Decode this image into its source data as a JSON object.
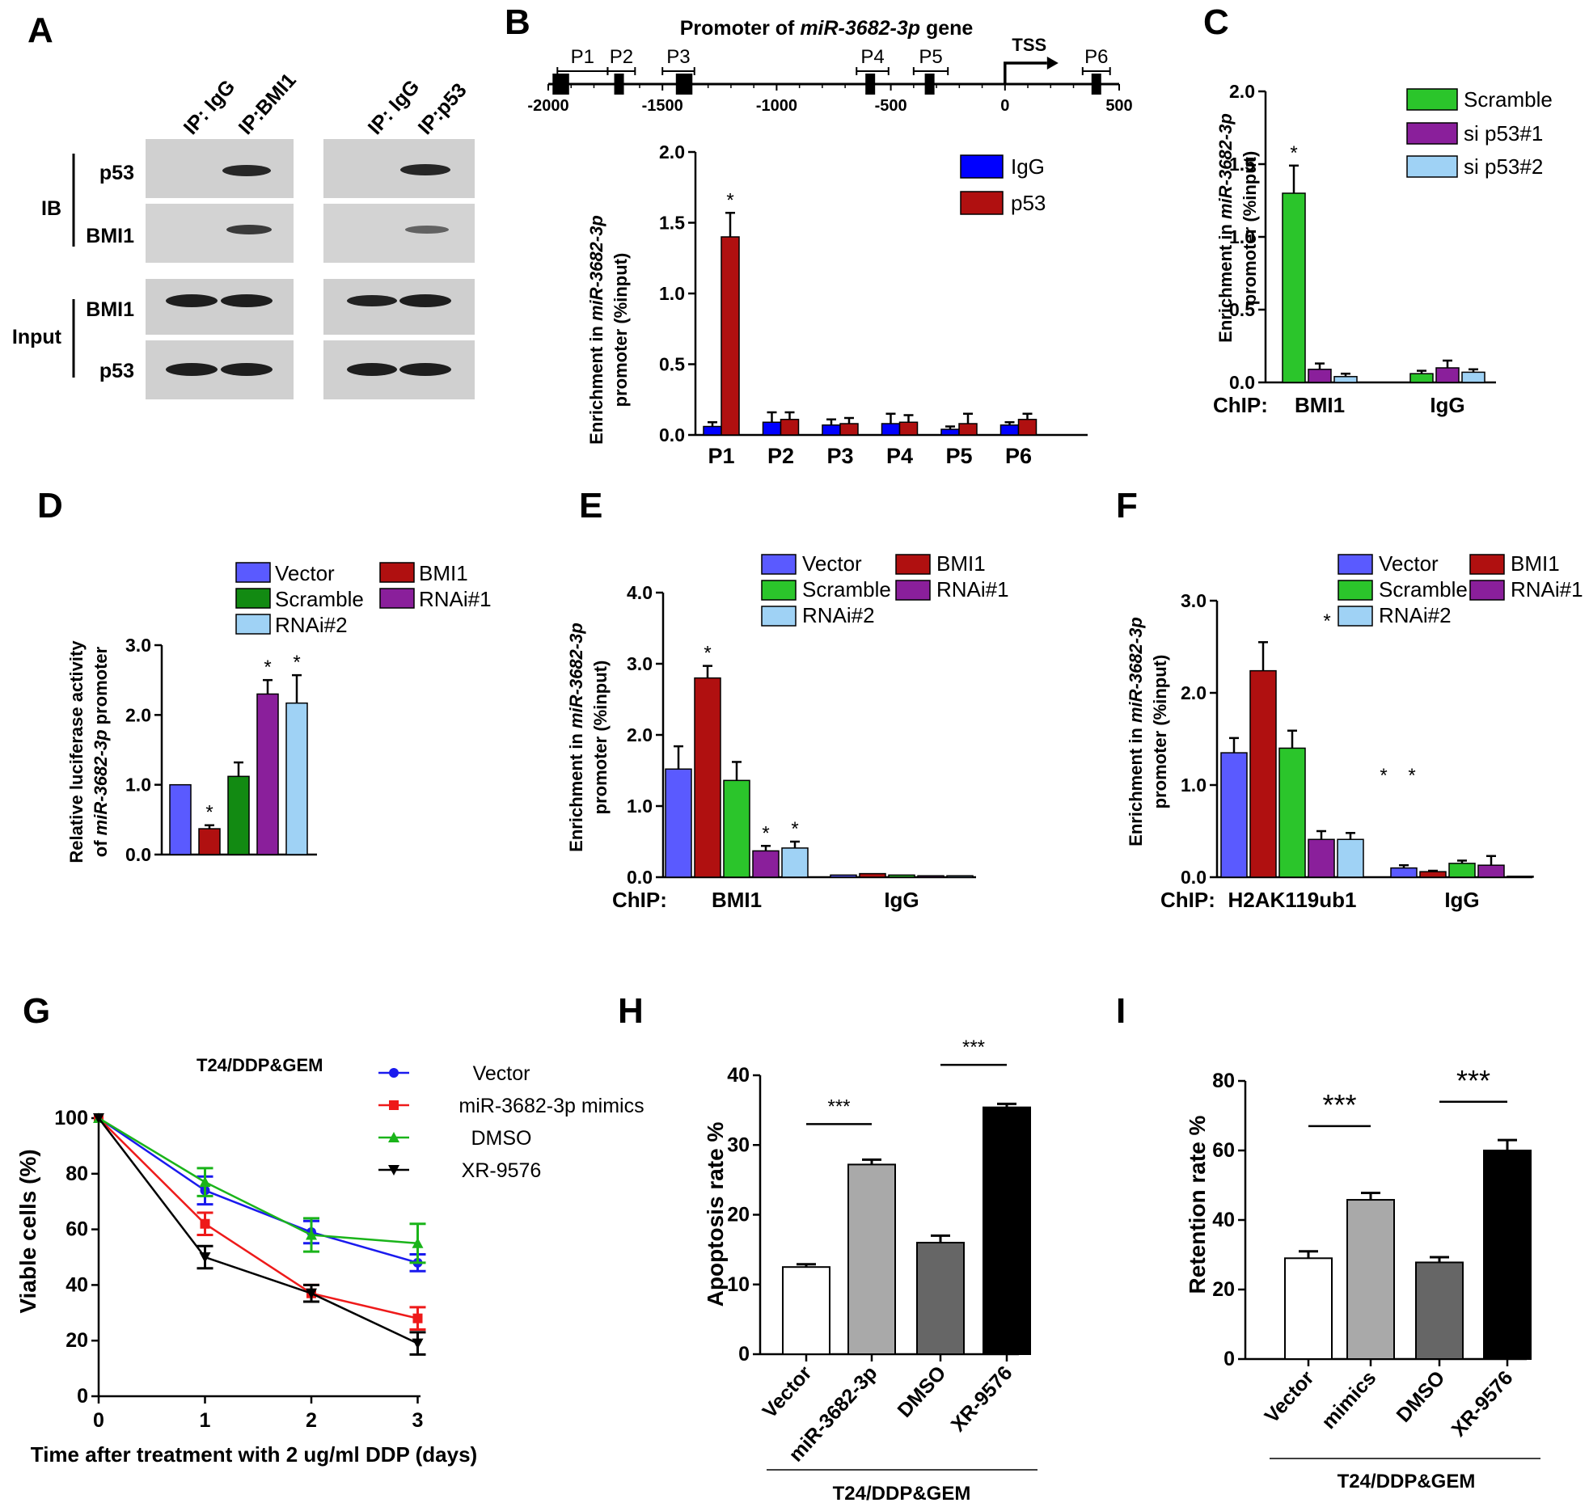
{
  "figure": {
    "panel_labels": [
      "A",
      "B",
      "C",
      "D",
      "E",
      "F",
      "G",
      "H",
      "I"
    ]
  },
  "blot": {
    "ip_labels": [
      "IP: IgG",
      "IP:BMI1",
      "IP: IgG",
      "IP:p53"
    ],
    "ib_label": "IB",
    "input_label": "Input",
    "row_labels": [
      "p53",
      "BMI1",
      "BMI1",
      "p53"
    ]
  },
  "chart_data": [
    {
      "panel": "B",
      "type": "bar",
      "title": "Promoter of miR-3682-3p gene",
      "title_plain": "Promoter of ",
      "title_italic": "miR-3682-3p",
      "title_tail": " gene",
      "map": {
        "axis_ticks": [
          "-2000",
          "-1500",
          "-1000",
          "-500",
          "0",
          "500"
        ],
        "axis_tick_values": [
          -2000,
          -1500,
          -1000,
          -500,
          0,
          500
        ],
        "regions": [
          {
            "label": "P1",
            "start": -1960,
            "end": -1740
          },
          {
            "label": "P2",
            "start": -1740,
            "end": -1620
          },
          {
            "label": "P3",
            "start": -1500,
            "end": -1360
          },
          {
            "label": "P4",
            "start": -650,
            "end": -510
          },
          {
            "label": "P5",
            "start": -400,
            "end": -250
          },
          {
            "label": "P6",
            "start": 340,
            "end": 460
          }
        ],
        "boxes": [
          -1960,
          -1930,
          -1690,
          -1420,
          -1390,
          -590,
          -330,
          400
        ],
        "tss_label": "TSS",
        "tss_pos": 0
      },
      "ylabel_line1_plain": "Enrichment in ",
      "ylabel_line1_italic": "miR-3682-3p",
      "ylabel_line2": "promoter (%input)",
      "ylim": [
        0,
        2.0
      ],
      "yticks": [
        "0.0",
        "0.5",
        "1.0",
        "1.5",
        "2.0"
      ],
      "ytick_values": [
        0,
        0.5,
        1.0,
        1.5,
        2.0
      ],
      "categories": [
        "P1",
        "P2",
        "P3",
        "P4",
        "P5",
        "P6"
      ],
      "series": [
        {
          "name": "IgG",
          "color": "#0000ff",
          "values": [
            0.06,
            0.09,
            0.07,
            0.08,
            0.04,
            0.07
          ],
          "errors": [
            0.03,
            0.07,
            0.04,
            0.07,
            0.02,
            0.02
          ]
        },
        {
          "name": "p53",
          "color": "#b01010",
          "values": [
            1.4,
            0.11,
            0.08,
            0.09,
            0.08,
            0.11
          ],
          "errors": [
            0.17,
            0.05,
            0.04,
            0.05,
            0.07,
            0.04
          ]
        }
      ],
      "significance": [
        {
          "category": "P1",
          "series": 1,
          "text": "*"
        }
      ]
    },
    {
      "panel": "C",
      "type": "bar",
      "ylabel_line1_plain": "Enrichment  in ",
      "ylabel_line1_italic": "miR-3682-3p",
      "ylabel_line2": "promoter (%input)",
      "ylim": [
        0,
        2.0
      ],
      "yticks": [
        "0.0",
        "0.5",
        "1.0",
        "1.5",
        "2.0"
      ],
      "ytick_values": [
        0,
        0.5,
        1.0,
        1.5,
        2.0
      ],
      "chip_label": "ChIP:",
      "categories": [
        "BMI1",
        "IgG"
      ],
      "series": [
        {
          "name": "Scramble",
          "color": "#2bc52b",
          "values": [
            1.3,
            0.06
          ],
          "errors": [
            0.19,
            0.02
          ]
        },
        {
          "name": "si p53#1",
          "color": "#8a1f9b",
          "values": [
            0.09,
            0.1
          ],
          "errors": [
            0.04,
            0.05
          ]
        },
        {
          "name": "si p53#2",
          "color": "#9fd2f5",
          "values": [
            0.04,
            0.07
          ],
          "errors": [
            0.02,
            0.02
          ]
        }
      ],
      "significance": [
        {
          "category": "BMI1",
          "series": 0,
          "text": "*"
        }
      ]
    },
    {
      "panel": "D",
      "type": "bar",
      "ylabel_line1": "Relative luciferase activity",
      "ylabel_line2_plain": "of ",
      "ylabel_line2_italic": "miR-3682-3p",
      "ylabel_line2_tail": " promoter",
      "ylim": [
        0,
        3.0
      ],
      "yticks": [
        "0.0",
        "1.0",
        "2.0",
        "3.0"
      ],
      "ytick_values": [
        0,
        1.0,
        2.0,
        3.0
      ],
      "categories": [
        "Vector",
        "BMI1",
        "Scramble",
        "RNAi#1",
        "RNAi#2"
      ],
      "values": [
        1.0,
        0.37,
        1.12,
        2.3,
        2.17
      ],
      "errors": [
        0.0,
        0.05,
        0.2,
        0.2,
        0.4
      ],
      "colors": [
        "#5a5aff",
        "#b01010",
        "#128a12",
        "#8a1f9b",
        "#9fd2f5"
      ],
      "significance": [
        "",
        "*",
        "",
        "*",
        "*"
      ],
      "legend_order": [
        "Vector",
        "BMI1",
        "Scramble",
        "RNAi#1",
        "RNAi#2"
      ]
    },
    {
      "panel": "E",
      "type": "bar",
      "ylabel_line1_plain": "Enrichment in ",
      "ylabel_line1_italic": "miR-3682-3p",
      "ylabel_line2": "promoter (%input)",
      "ylim": [
        0,
        4.0
      ],
      "yticks": [
        "0.0",
        "1.0",
        "2.0",
        "3.0",
        "4.0"
      ],
      "ytick_values": [
        0,
        1.0,
        2.0,
        3.0,
        4.0
      ],
      "chip_label": "ChIP:",
      "categories": [
        "BMI1",
        "IgG"
      ],
      "series": [
        {
          "name": "Vector",
          "color": "#5a5aff",
          "values": [
            1.52,
            0.03
          ],
          "errors": [
            0.32,
            0.0
          ]
        },
        {
          "name": "BMI1",
          "color": "#b01010",
          "values": [
            2.8,
            0.05
          ],
          "errors": [
            0.17,
            0.0
          ]
        },
        {
          "name": "Scramble",
          "color": "#2bc52b",
          "values": [
            1.36,
            0.03
          ],
          "errors": [
            0.26,
            0.0
          ]
        },
        {
          "name": "RNAi#1",
          "color": "#8a1f9b",
          "values": [
            0.37,
            0.02
          ],
          "errors": [
            0.07,
            0.0
          ]
        },
        {
          "name": "RNAi#2",
          "color": "#9fd2f5",
          "values": [
            0.41,
            0.02
          ],
          "errors": [
            0.09,
            0.0
          ]
        }
      ],
      "significance": [
        {
          "category": "BMI1",
          "series": 1,
          "text": "*"
        },
        {
          "category": "BMI1",
          "series": 3,
          "text": "*"
        },
        {
          "category": "BMI1",
          "series": 4,
          "text": "*"
        }
      ]
    },
    {
      "panel": "F",
      "type": "bar",
      "ylabel_line1_plain": "Enrichment in ",
      "ylabel_line1_italic": "miR-3682-3p",
      "ylabel_line2": "promoter (%input)",
      "ylim": [
        0,
        3.0
      ],
      "yticks": [
        "0.0",
        "1.0",
        "2.0",
        "3.0"
      ],
      "ytick_values": [
        0,
        1.0,
        2.0,
        3.0
      ],
      "chip_label": "ChIP:",
      "categories": [
        "H2AK119ub1",
        "IgG"
      ],
      "series": [
        {
          "name": "Vector",
          "color": "#5a5aff",
          "values": [
            1.35,
            0.1
          ],
          "errors": [
            0.16,
            0.03
          ]
        },
        {
          "name": "BMI1",
          "color": "#b01010",
          "values": [
            2.24,
            0.06
          ],
          "errors": [
            0.31,
            0.01
          ]
        },
        {
          "name": "Scramble",
          "color": "#2bc52b",
          "values": [
            1.4,
            0.15
          ],
          "errors": [
            0.19,
            0.03
          ]
        },
        {
          "name": "RNAi#1",
          "color": "#8a1f9b",
          "values": [
            0.41,
            0.13
          ],
          "errors": [
            0.09,
            0.1
          ]
        },
        {
          "name": "RNAi#2",
          "color": "#9fd2f5",
          "values": [
            0.41,
            0.01
          ],
          "errors": [
            0.07,
            0.0
          ]
        }
      ],
      "significance_text": [
        "*",
        "*",
        "*"
      ]
    },
    {
      "panel": "G",
      "type": "line",
      "title": "T24/DDP&GEM",
      "xlabel": "Time after treatment with 2 ug/ml DDP (days)",
      "ylabel": "Viable cells (%)",
      "x": [
        0,
        1,
        2,
        3
      ],
      "xticks": [
        "0",
        "1",
        "2",
        "3"
      ],
      "ylim": [
        0,
        100
      ],
      "yticks": [
        "0",
        "20",
        "40",
        "60",
        "80",
        "100"
      ],
      "ytick_values": [
        0,
        20,
        40,
        60,
        80,
        100
      ],
      "series": [
        {
          "name": "Vector",
          "color": "#1a1aee",
          "marker": "circle",
          "values": [
            100,
            74,
            59,
            48
          ],
          "errors": [
            0,
            5,
            4,
            3
          ]
        },
        {
          "name": "miR-3682-3p mimics",
          "color": "#ee1a1a",
          "marker": "square",
          "values": [
            100,
            62,
            37,
            28
          ],
          "errors": [
            0,
            4,
            3,
            4
          ]
        },
        {
          "name": "DMSO",
          "color": "#1ab41a",
          "marker": "triangle-up",
          "values": [
            100,
            77,
            58,
            55
          ],
          "errors": [
            0,
            5,
            6,
            7
          ]
        },
        {
          "name": "XR-9576",
          "color": "#000000",
          "marker": "triangle-down",
          "values": [
            100,
            50,
            37,
            19
          ],
          "errors": [
            0,
            4,
            3,
            4
          ]
        }
      ]
    },
    {
      "panel": "H",
      "type": "bar",
      "ylabel": "Apoptosis rate %",
      "ylim": [
        0,
        40
      ],
      "yticks": [
        "0",
        "10",
        "20",
        "30",
        "40"
      ],
      "ytick_values": [
        0,
        10,
        20,
        30,
        40
      ],
      "categories": [
        "Vector",
        "miR-3682-3p",
        "DMSO",
        "XR-9576"
      ],
      "values": [
        12.5,
        27.2,
        16.0,
        35.4
      ],
      "errors": [
        0.4,
        0.7,
        1.0,
        0.5
      ],
      "colors": [
        "#ffffff",
        "#a9a9a9",
        "#666666",
        "#000000"
      ],
      "group_label": "T24/DDP&GEM",
      "significance": [
        {
          "from": 0,
          "to": 1,
          "text": "***",
          "y": 33
        },
        {
          "from": 2,
          "to": 3,
          "text": "***",
          "y": 41.5
        }
      ]
    },
    {
      "panel": "I",
      "type": "bar",
      "ylabel": "Retention rate %",
      "ylim": [
        0,
        80
      ],
      "yticks": [
        "0",
        "20",
        "40",
        "60",
        "80"
      ],
      "ytick_values": [
        0,
        20,
        40,
        60,
        80
      ],
      "categories": [
        "Vector",
        "mimics",
        "DMSO",
        "XR-9576"
      ],
      "values": [
        29.0,
        45.8,
        27.8,
        60.0
      ],
      "errors": [
        2.0,
        2.0,
        1.5,
        3.0
      ],
      "colors": [
        "#ffffff",
        "#a9a9a9",
        "#666666",
        "#000000"
      ],
      "group_label": "T24/DDP&GEM",
      "significance": [
        {
          "from": 0,
          "to": 1,
          "text": "***",
          "y": 67
        },
        {
          "from": 2,
          "to": 3,
          "text": "***",
          "y": 74
        }
      ]
    }
  ]
}
